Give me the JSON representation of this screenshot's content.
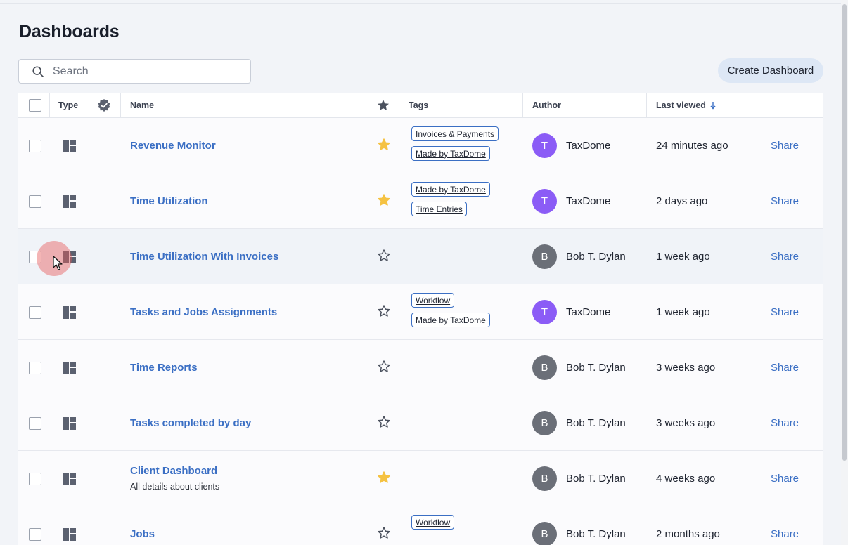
{
  "page": {
    "title": "Dashboards"
  },
  "search": {
    "placeholder": "Search",
    "value": ""
  },
  "toolbar": {
    "create_label": "Create Dashboard"
  },
  "colors": {
    "link": "#3b6fc4",
    "star_active": "#f5c242",
    "avatar_taxdome": "#8b5cf6",
    "avatar_bob": "#6b6f78"
  },
  "table": {
    "headers": {
      "type": "Type",
      "name": "Name",
      "tags": "Tags",
      "author": "Author",
      "last_viewed": "Last viewed",
      "sort_icon": "arrow-down-icon"
    },
    "rows": [
      {
        "name": "Revenue Monitor",
        "subtitle": "",
        "starred": true,
        "tags": [
          "Invoices & Payments",
          "Made by TaxDome"
        ],
        "avatar": "T",
        "author": "TaxDome",
        "last_viewed": "24 minutes ago",
        "share": "Share"
      },
      {
        "name": "Time Utilization",
        "subtitle": "",
        "starred": true,
        "tags": [
          "Made by TaxDome",
          "Time Entries"
        ],
        "avatar": "T",
        "author": "TaxDome",
        "last_viewed": "2 days ago",
        "share": "Share"
      },
      {
        "name": "Time Utilization With Invoices",
        "subtitle": "",
        "starred": false,
        "tags": [],
        "avatar": "B",
        "author": "Bob T. Dylan",
        "last_viewed": "1 week ago",
        "share": "Share"
      },
      {
        "name": "Tasks and Jobs Assignments",
        "subtitle": "",
        "starred": false,
        "tags": [
          "Workflow",
          "Made by TaxDome"
        ],
        "avatar": "T",
        "author": "TaxDome",
        "last_viewed": "1 week ago",
        "share": "Share"
      },
      {
        "name": "Time Reports",
        "subtitle": "",
        "starred": false,
        "tags": [],
        "avatar": "B",
        "author": "Bob T. Dylan",
        "last_viewed": "3 weeks ago",
        "share": "Share"
      },
      {
        "name": "Tasks completed by day",
        "subtitle": "",
        "starred": false,
        "tags": [],
        "avatar": "B",
        "author": "Bob T. Dylan",
        "last_viewed": "3 weeks ago",
        "share": "Share"
      },
      {
        "name": "Client Dashboard",
        "subtitle": "All details about clients",
        "starred": true,
        "tags": [],
        "avatar": "B",
        "author": "Bob T. Dylan",
        "last_viewed": "4 weeks ago",
        "share": "Share"
      },
      {
        "name": "Jobs",
        "subtitle": "",
        "starred": false,
        "tags": [
          "Workflow"
        ],
        "avatar": "B",
        "author": "Bob T. Dylan",
        "last_viewed": "2 months ago",
        "share": "Share"
      }
    ]
  }
}
